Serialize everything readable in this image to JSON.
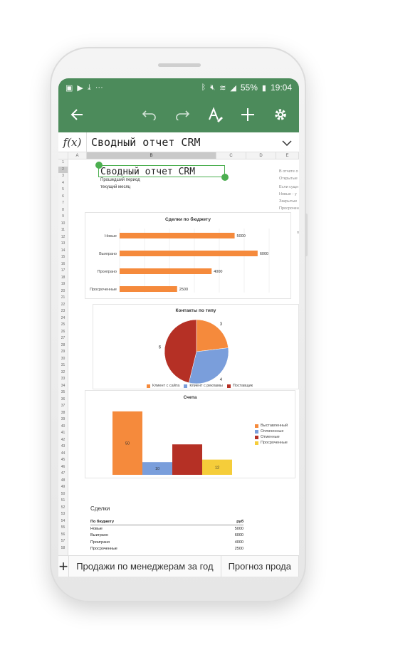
{
  "status": {
    "battery": "55%",
    "time": "19:04"
  },
  "formula": {
    "fx": "f(x)",
    "text": "Сводный отчет CRM"
  },
  "columns": [
    "A",
    "B",
    "C",
    "D",
    "E"
  ],
  "rows": [
    "1",
    "2",
    "3",
    "4",
    "5",
    "6",
    "7",
    "8",
    "9",
    "10",
    "11",
    "12",
    "13",
    "14",
    "15",
    "16",
    "17",
    "18",
    "19",
    "20",
    "21",
    "22",
    "23",
    "24",
    "25",
    "26",
    "27",
    "28",
    "29",
    "30",
    "31",
    "32",
    "33",
    "34",
    "35",
    "36",
    "37",
    "38",
    "39",
    "40",
    "41",
    "42",
    "43",
    "44",
    "45",
    "46",
    "47",
    "48",
    "49",
    "50",
    "51",
    "52",
    "53",
    "54",
    "55",
    "56",
    "57",
    "58"
  ],
  "sheet": {
    "title": "Сводный отчет CRM",
    "period_label": "Прошедший период",
    "period_value": "текущий месяц",
    "right_notes": [
      "В отчете о",
      "Открытые",
      "Если сущн",
      "Новые - у",
      "Закрытые",
      "Просрочен"
    ],
    "right_marker": "п"
  },
  "chart_data": [
    {
      "type": "bar",
      "orientation": "horizontal",
      "title": "Сделки по бюджету",
      "categories": [
        "Новые",
        "Выиграно",
        "Проиграно",
        "Просроченные"
      ],
      "values": [
        5000,
        6000,
        4000,
        2500
      ],
      "xlim": [
        0,
        6500
      ],
      "grid": true,
      "color": "#f58a3c"
    },
    {
      "type": "pie",
      "title": "Контакты по типу",
      "categories": [
        "Клиент с сайта",
        "Клиент с рекламы",
        "Поставщик"
      ],
      "values": [
        3,
        4,
        6
      ],
      "colors": [
        "#f58a3c",
        "#7a9edb",
        "#b53025"
      ],
      "legend": "bottom"
    },
    {
      "type": "bar",
      "title": "Счета",
      "categories": [
        "Выставленный",
        "Оплаченные",
        "Отменные",
        "Просроченные"
      ],
      "values": [
        50,
        10,
        24,
        12
      ],
      "data_labels": [
        "50",
        "10",
        "",
        "12"
      ],
      "ylim": [
        0,
        55
      ],
      "colors": [
        "#f58a3c",
        "#7a9edb",
        "#b53025",
        "#f5cd3a"
      ],
      "legend": "right"
    }
  ],
  "deals_table": {
    "title": "Сделки",
    "header": [
      "По бюджету",
      "руб"
    ],
    "rows": [
      [
        "Новые",
        "5000"
      ],
      [
        "Выиграно",
        "6000"
      ],
      [
        "Проиграно",
        "4000"
      ],
      [
        "Просроченные",
        "2500"
      ]
    ]
  },
  "tabs": {
    "add": "+",
    "items": [
      "Продажи по менеджерам за год",
      "Прогноз прода"
    ]
  }
}
